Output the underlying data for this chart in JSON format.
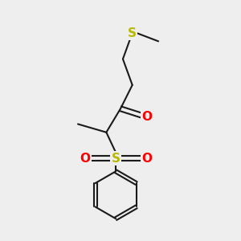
{
  "background_color": "#eeeeee",
  "bond_color": "#1a1a1a",
  "bond_width": 1.5,
  "S_thio_color": "#b8b800",
  "S_sulfonyl_color": "#b8b800",
  "O_color": "#ff0000",
  "figsize": [
    3.0,
    3.0
  ],
  "dpi": 100,
  "xlim": [
    0,
    10
  ],
  "ylim": [
    0,
    10
  ]
}
